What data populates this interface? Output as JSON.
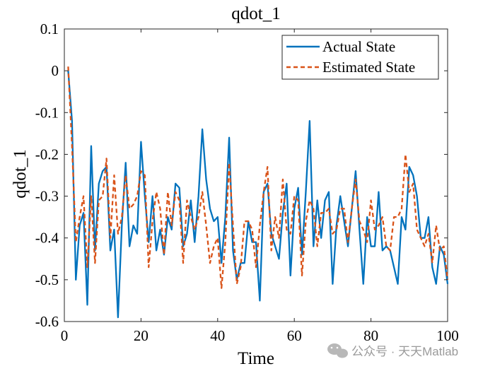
{
  "chart_data": {
    "type": "line",
    "title": "qdot_1",
    "xlabel": "Time",
    "ylabel": "qdot_1",
    "xlim": [
      0,
      100
    ],
    "ylim": [
      -0.6,
      0.1
    ],
    "xticks": [
      0,
      20,
      40,
      60,
      80,
      100
    ],
    "xtick_labels": [
      "0",
      "20",
      "40",
      "60",
      "80",
      "100"
    ],
    "yticks": [
      0.1,
      0,
      -0.1,
      -0.2,
      -0.3,
      -0.4,
      -0.5,
      -0.6
    ],
    "ytick_labels": [
      "0.1",
      "0",
      "-0.1",
      "-0.2",
      "-0.3",
      "-0.4",
      "-0.5",
      "-0.6"
    ],
    "grid": false,
    "legend_position": "top-right",
    "series": [
      {
        "name": "Actual State",
        "color": "#0072BD",
        "style": "solid",
        "x": [
          1,
          2,
          3,
          4,
          5,
          6,
          7,
          8,
          9,
          10,
          11,
          12,
          13,
          14,
          15,
          16,
          17,
          18,
          19,
          20,
          21,
          22,
          23,
          24,
          25,
          26,
          27,
          28,
          29,
          30,
          31,
          32,
          33,
          34,
          35,
          36,
          37,
          38,
          39,
          40,
          41,
          42,
          43,
          44,
          45,
          46,
          47,
          48,
          49,
          50,
          51,
          52,
          53,
          54,
          55,
          56,
          57,
          58,
          59,
          60,
          61,
          62,
          63,
          64,
          65,
          66,
          67,
          68,
          69,
          70,
          71,
          72,
          73,
          74,
          75,
          76,
          77,
          78,
          79,
          80,
          81,
          82,
          83,
          84,
          85,
          86,
          87,
          88,
          89,
          90,
          91,
          92,
          93,
          94,
          95,
          96,
          97,
          98,
          99,
          100
        ],
        "values": [
          0.0,
          -0.12,
          -0.5,
          -0.37,
          -0.34,
          -0.56,
          -0.18,
          -0.43,
          -0.27,
          -0.24,
          -0.23,
          -0.43,
          -0.38,
          -0.59,
          -0.37,
          -0.22,
          -0.42,
          -0.37,
          -0.39,
          -0.17,
          -0.3,
          -0.41,
          -0.3,
          -0.43,
          -0.38,
          -0.44,
          -0.35,
          -0.38,
          -0.27,
          -0.28,
          -0.42,
          -0.39,
          -0.31,
          -0.41,
          -0.3,
          -0.14,
          -0.26,
          -0.33,
          -0.36,
          -0.35,
          -0.46,
          -0.35,
          -0.16,
          -0.43,
          -0.5,
          -0.46,
          -0.46,
          -0.36,
          -0.41,
          -0.41,
          -0.55,
          -0.29,
          -0.27,
          -0.39,
          -0.42,
          -0.45,
          -0.34,
          -0.27,
          -0.49,
          -0.33,
          -0.28,
          -0.44,
          -0.29,
          -0.12,
          -0.42,
          -0.31,
          -0.4,
          -0.31,
          -0.29,
          -0.51,
          -0.37,
          -0.3,
          -0.36,
          -0.42,
          -0.33,
          -0.24,
          -0.38,
          -0.51,
          -0.35,
          -0.42,
          -0.42,
          -0.29,
          -0.43,
          -0.42,
          -0.43,
          -0.47,
          -0.51,
          -0.35,
          -0.38,
          -0.23,
          -0.25,
          -0.3,
          -0.4,
          -0.4,
          -0.35,
          -0.47,
          -0.51,
          -0.42,
          -0.44,
          -0.51
        ]
      },
      {
        "name": "Estimated State",
        "color": "#D95319",
        "style": "dashed",
        "x": [
          1,
          2,
          3,
          4,
          5,
          6,
          7,
          8,
          9,
          10,
          11,
          12,
          13,
          14,
          15,
          16,
          17,
          18,
          19,
          20,
          21,
          22,
          23,
          24,
          25,
          26,
          27,
          28,
          29,
          30,
          31,
          32,
          33,
          34,
          35,
          36,
          37,
          38,
          39,
          40,
          41,
          42,
          43,
          44,
          45,
          46,
          47,
          48,
          49,
          50,
          51,
          52,
          53,
          54,
          55,
          56,
          57,
          58,
          59,
          60,
          61,
          62,
          63,
          64,
          65,
          66,
          67,
          68,
          69,
          70,
          71,
          72,
          73,
          74,
          75,
          76,
          77,
          78,
          79,
          80,
          81,
          82,
          83,
          84,
          85,
          86,
          87,
          88,
          89,
          90,
          91,
          92,
          93,
          94,
          95,
          96,
          97,
          98,
          99,
          100
        ],
        "values": [
          0.01,
          -0.18,
          -0.41,
          -0.35,
          -0.3,
          -0.47,
          -0.3,
          -0.46,
          -0.31,
          -0.3,
          -0.21,
          -0.4,
          -0.25,
          -0.39,
          -0.35,
          -0.25,
          -0.33,
          -0.32,
          -0.3,
          -0.24,
          -0.25,
          -0.47,
          -0.36,
          -0.29,
          -0.33,
          -0.44,
          -0.29,
          -0.37,
          -0.29,
          -0.31,
          -0.46,
          -0.31,
          -0.35,
          -0.38,
          -0.35,
          -0.29,
          -0.37,
          -0.46,
          -0.42,
          -0.4,
          -0.52,
          -0.41,
          -0.22,
          -0.37,
          -0.51,
          -0.47,
          -0.36,
          -0.36,
          -0.38,
          -0.47,
          -0.37,
          -0.29,
          -0.23,
          -0.43,
          -0.35,
          -0.4,
          -0.26,
          -0.38,
          -0.39,
          -0.3,
          -0.31,
          -0.49,
          -0.36,
          -0.31,
          -0.33,
          -0.42,
          -0.34,
          -0.34,
          -0.33,
          -0.39,
          -0.38,
          -0.33,
          -0.33,
          -0.41,
          -0.33,
          -0.26,
          -0.36,
          -0.38,
          -0.41,
          -0.31,
          -0.38,
          -0.37,
          -0.35,
          -0.42,
          -0.43,
          -0.35,
          -0.35,
          -0.33,
          -0.2,
          -0.29,
          -0.27,
          -0.38,
          -0.4,
          -0.42,
          -0.39,
          -0.46,
          -0.37,
          -0.43,
          -0.42,
          -0.5
        ]
      }
    ]
  },
  "watermark": {
    "text": "公众号 · 天天Matlab",
    "icon": "wechat-icon"
  }
}
